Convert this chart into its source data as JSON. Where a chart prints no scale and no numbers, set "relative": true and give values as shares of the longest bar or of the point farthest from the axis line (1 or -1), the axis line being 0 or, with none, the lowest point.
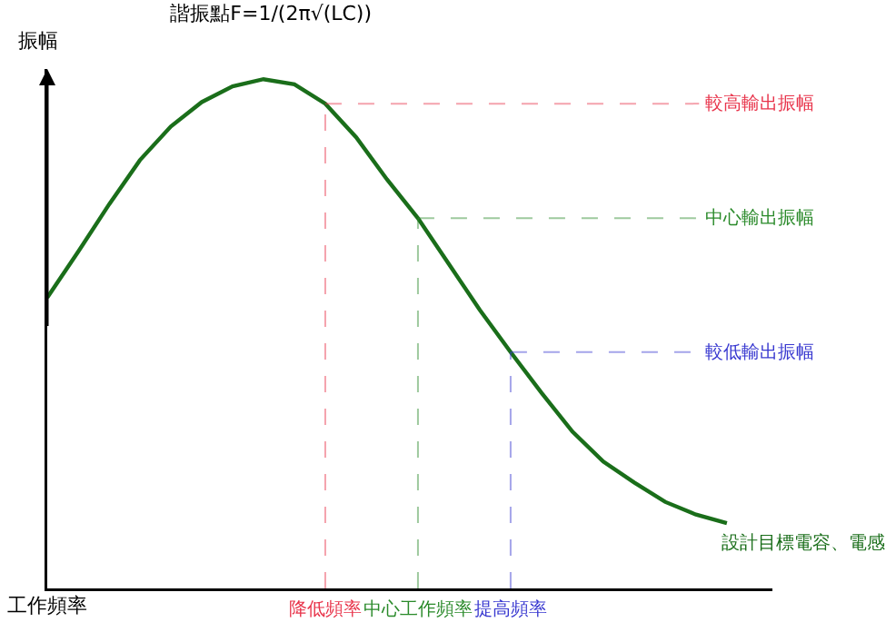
{
  "chart_data": {
    "type": "line",
    "title": "諧振點F=1/(2π√(LC))",
    "xlabel": "工作頻率",
    "ylabel": "振幅",
    "relative": true,
    "categories": [
      null,
      null,
      null,
      null,
      null,
      null,
      null,
      null,
      null,
      "降低頻率",
      null,
      null,
      "中心工作頻率",
      null,
      null,
      "提高頻率",
      null,
      null,
      null,
      null,
      null,
      null,
      null
    ],
    "series": [
      {
        "name": "設計目標電容、電感",
        "color": "#1a6e1a",
        "values": [
          0.571,
          0.661,
          0.754,
          0.841,
          0.907,
          0.955,
          0.986,
          1,
          0.99,
          0.952,
          0.886,
          0.803,
          0.727,
          0.637,
          0.547,
          0.464,
          0.384,
          0.308,
          0.249,
          0.208,
          0.17,
          0.145,
          0.128
        ]
      }
    ],
    "ref_lines": [
      {
        "axis": "x",
        "value": "降低頻率",
        "color": "#e8334a",
        "line_style": "dashed"
      },
      {
        "axis": "x",
        "value": "中心工作頻率",
        "color": "#2a8a2a",
        "line_style": "dashed"
      },
      {
        "axis": "x",
        "value": "提高頻率",
        "color": "#3838d0",
        "line_style": "dashed"
      },
      {
        "axis": "y",
        "value": 0.952,
        "label": "較高輸出振幅",
        "color": "#e8334a",
        "line_style": "dashed"
      },
      {
        "axis": "y",
        "value": 0.727,
        "label": "中心輸出振幅",
        "color": "#2a8a2a",
        "line_style": "dashed"
      },
      {
        "axis": "y",
        "value": 0.464,
        "label": "較低輸出振幅",
        "color": "#3838d0",
        "line_style": "dashed"
      }
    ],
    "grid": false,
    "legend": false,
    "marker": "none",
    "line_style": "solid"
  }
}
